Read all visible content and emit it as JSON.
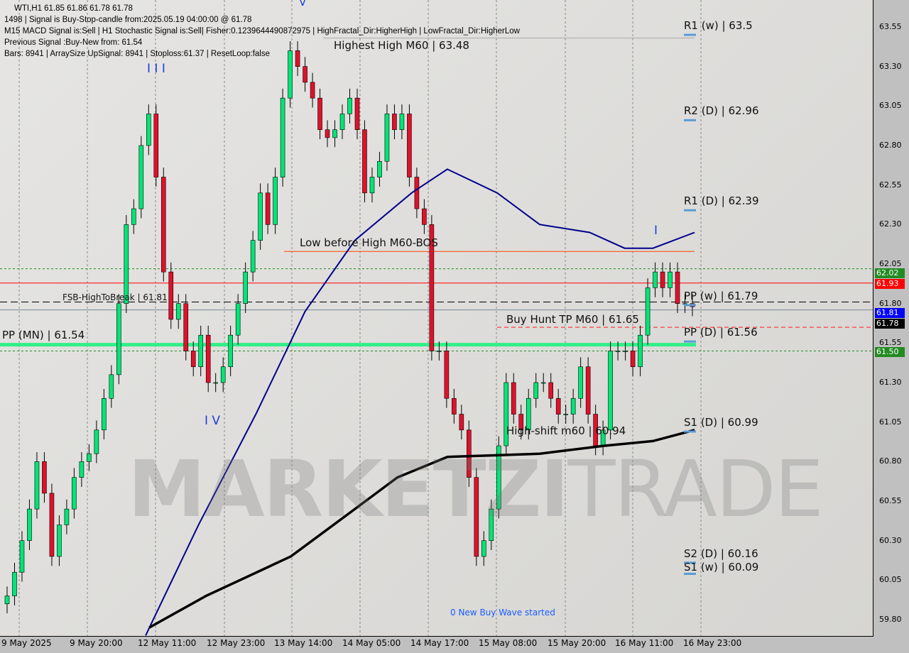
{
  "header": {
    "symbol_line": "WTI,H1  61.85 61.86 61.78 61.78",
    "signal_line": "1498 | Signal is Buy-Stop-candle from:2025.05.19 04:00:00 @ 61.78",
    "macd_line": "M15 MACD Signal is:Sell | H1 Stochastic Signal is:Sell| Fisher:0.1239644490872975 | HighFractal_Dir:HigherHigh | LowFractal_Dir:HigherLow",
    "previous_line": "Previous Signal :Buy-New from: 61.54",
    "bars_line": "Bars: 8941 | ArraySize UpSignal: 8941 | Stoploss:61.37 | ResetLoop:false"
  },
  "watermark": {
    "part1": "MARKETZI",
    "part2": "TRADE"
  },
  "annotations": {
    "highest_high": "Highest High   M60 | 63.48",
    "low_before_high": "Low before High   M60-BOS",
    "fsb": "FSB-HighToBreak | 61.81",
    "pp_mn": "PP (MN) | 61.54",
    "buy_hunt": "Buy Hunt TP M60 | 61.65",
    "high_shift": "High-shift m60 | 60.94",
    "new_wave": "0 New Buy Wave started",
    "wave_iii": "I I I",
    "wave_iv": "I V",
    "wave_v": "V",
    "wave_i": "I"
  },
  "pivots": [
    {
      "label": "R1 (w) | 63.5",
      "price": 63.5
    },
    {
      "label": "R2 (D) | 62.96",
      "price": 62.96
    },
    {
      "label": "R1 (D) | 62.39",
      "price": 62.39
    },
    {
      "label": "PP (w) | 61.79",
      "price": 61.79
    },
    {
      "label": "PP (D) | 61.56",
      "price": 61.56
    },
    {
      "label": "S1 (D) | 60.99",
      "price": 60.99
    },
    {
      "label": "S2 (D) | 60.16",
      "price": 60.16
    },
    {
      "label": "S1 (w) | 60.09",
      "price": 60.09
    }
  ],
  "price_badges": [
    {
      "text": "62.02",
      "price": 62.02,
      "color": "#228b22"
    },
    {
      "text": "61.93",
      "price": 61.93,
      "color": "#ff0000"
    },
    {
      "text": "61.81",
      "price": 61.81,
      "color": "#0000ff"
    },
    {
      "text": "61.78",
      "price": 61.76,
      "color": "#000000"
    },
    {
      "text": "61.50",
      "price": 61.5,
      "color": "#228b22"
    }
  ],
  "colors": {
    "bull": "#00e676",
    "bear": "#e0112b",
    "ma_fast": "#00008b",
    "ma_slow": "#000000",
    "pp_mn": "#33ee88"
  },
  "chart_data": {
    "type": "candlestick",
    "title": "WTI,H1",
    "ylim": [
      59.7,
      63.65
    ],
    "y_ticks": [
      "63.55",
      "63.30",
      "63.05",
      "62.80",
      "62.55",
      "62.30",
      "62.05",
      "61.80",
      "61.55",
      "61.30",
      "61.05",
      "60.80",
      "60.55",
      "60.30",
      "60.05",
      "59.80"
    ],
    "x_ticks": [
      "9 May 2025",
      "9 May 20:00",
      "12 May 11:00",
      "12 May 23:00",
      "13 May 14:00",
      "14 May 05:00",
      "14 May 17:00",
      "15 May 08:00",
      "15 May 20:00",
      "16 May 11:00",
      "16 May 23:00"
    ],
    "first_open": 59.9,
    "close": [
      59.95,
      60.1,
      60.3,
      60.5,
      60.8,
      60.6,
      60.2,
      60.4,
      60.5,
      60.7,
      60.8,
      60.85,
      61.0,
      61.2,
      61.35,
      61.8,
      62.3,
      62.4,
      62.8,
      63.0,
      62.6,
      62.0,
      61.7,
      61.8,
      61.5,
      61.4,
      61.6,
      61.3,
      61.3,
      61.4,
      61.6,
      61.8,
      62.0,
      62.2,
      62.5,
      62.3,
      62.6,
      63.1,
      63.4,
      63.3,
      63.2,
      63.1,
      62.9,
      62.85,
      62.9,
      63.0,
      63.1,
      62.9,
      62.5,
      62.6,
      62.7,
      63.0,
      62.9,
      63.0,
      62.6,
      62.4,
      62.3,
      61.5,
      61.5,
      61.2,
      61.1,
      61.0,
      60.7,
      60.2,
      60.3,
      60.5,
      60.9,
      61.3,
      61.1,
      61.0,
      61.2,
      61.3,
      61.3,
      61.2,
      61.1,
      61.1,
      61.2,
      61.4,
      61.1,
      60.9,
      61.0,
      61.5,
      61.5,
      61.5,
      61.4,
      61.6,
      61.9,
      62.0,
      61.9,
      62.0,
      61.8,
      61.8,
      61.78
    ],
    "ma_fast": [
      [
        18.6,
        59.7
      ],
      [
        25.7,
        60.4
      ],
      [
        33.4,
        61.1
      ],
      [
        40,
        61.75
      ],
      [
        46.7,
        62.2
      ],
      [
        54.3,
        62.5
      ],
      [
        59.1,
        62.65
      ],
      [
        65.8,
        62.5
      ],
      [
        71.5,
        62.3
      ],
      [
        78.2,
        62.25
      ],
      [
        82.9,
        62.15
      ],
      [
        86.7,
        62.15
      ],
      [
        92.3,
        62.25
      ]
    ],
    "ma_slow": [
      [
        19.1,
        59.75
      ],
      [
        26.7,
        59.95
      ],
      [
        38.1,
        60.2
      ],
      [
        46.7,
        60.5
      ],
      [
        52.4,
        60.7
      ],
      [
        59.1,
        60.83
      ],
      [
        65.8,
        60.84
      ],
      [
        71.5,
        60.85
      ],
      [
        80.1,
        60.9
      ],
      [
        86.7,
        60.93
      ],
      [
        92.3,
        61.0
      ]
    ],
    "levels": {
      "highest_high": 63.48,
      "low_before_high": 62.13,
      "fsb": 61.81,
      "red_line": 61.93,
      "green_dotted": [
        62.02,
        61.5
      ],
      "pp_mn": 61.54,
      "buy_hunt": 61.65,
      "high_shift": 60.94
    }
  }
}
